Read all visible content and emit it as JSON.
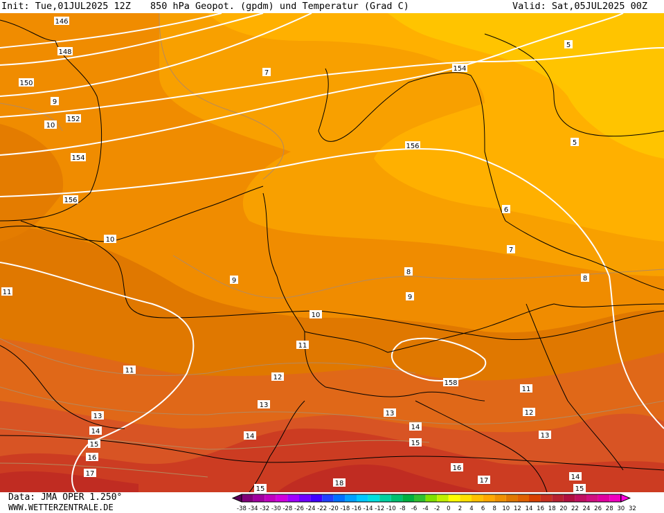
{
  "header": {
    "init": "Init: Tue,01JUL2025 12Z",
    "title": "850 hPa Geopot. (gpdm) und Temperatur (Grad C)",
    "valid": "Valid: Sat,05JUL2025 00Z"
  },
  "footer": {
    "data_source": "Data: JMA OPER 1.250°",
    "website": "WWW.WETTERZENTRALE.DE"
  },
  "legend": {
    "labels": [
      "-38",
      "-34",
      "-32",
      "-30",
      "-28",
      "-26",
      "-24",
      "-22",
      "-20",
      "-18",
      "-16",
      "-14",
      "-12",
      "-10",
      "-8",
      "-6",
      "-4",
      "-2",
      "0",
      "2",
      "4",
      "6",
      "8",
      "10",
      "12",
      "14",
      "16",
      "18",
      "20",
      "22",
      "24",
      "26",
      "28",
      "30",
      "32"
    ],
    "colors": [
      "#5a005a",
      "#80007a",
      "#a000a0",
      "#c000c0",
      "#d000e0",
      "#a000ff",
      "#7000ff",
      "#4000ff",
      "#2040ff",
      "#0070ff",
      "#00a0ff",
      "#00c8ff",
      "#00e0e0",
      "#00d0a0",
      "#00c070",
      "#00b040",
      "#30c030",
      "#80e000",
      "#c0f000",
      "#ffff00",
      "#ffe000",
      "#ffc000",
      "#ffa800",
      "#f09000",
      "#e07800",
      "#e06000",
      "#d84000",
      "#c83020",
      "#b82030",
      "#b01040",
      "#c01060",
      "#d01080",
      "#e000a0",
      "#f000c0",
      "#ff00e0"
    ]
  },
  "geopotential_labels": [
    "146",
    "148",
    "150",
    "152",
    "154",
    "156",
    "154",
    "156",
    "158"
  ],
  "temperature_labels": [
    "5",
    "5",
    "7",
    "9",
    "10",
    "10",
    "11",
    "11",
    "9",
    "10",
    "9",
    "8",
    "8",
    "7",
    "6",
    "11",
    "11",
    "12",
    "13",
    "13",
    "12",
    "14",
    "13",
    "14",
    "15",
    "13",
    "14",
    "15",
    "16",
    "17",
    "16",
    "17",
    "18",
    "15",
    "14",
    "15"
  ],
  "colors": {
    "t10": "#e07a00",
    "t12": "#e06a18",
    "t14": "#d85022",
    "t16": "#cc3a22",
    "t18": "#c02a22",
    "t8": "#f28e00",
    "t6": "#f8a400",
    "t4": "#ffb800",
    "t2": "#ffcc00"
  }
}
